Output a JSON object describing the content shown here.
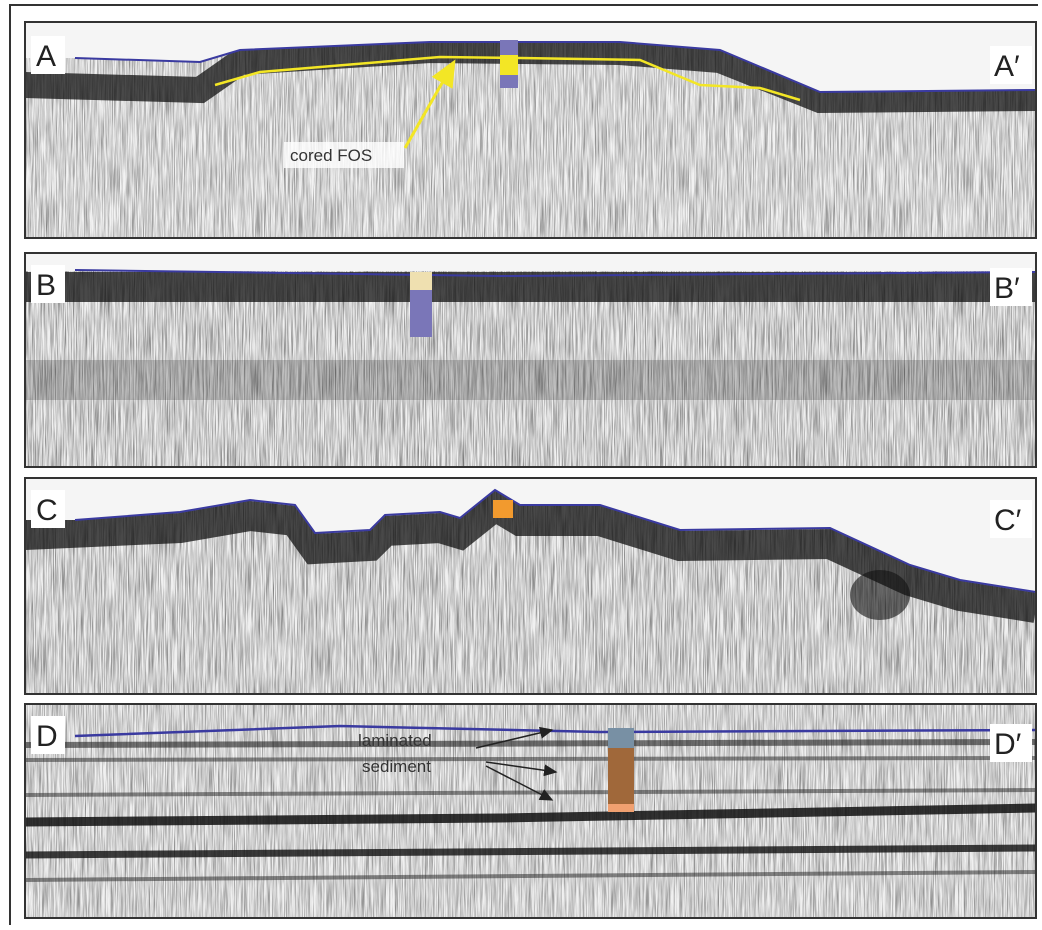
{
  "panels": [
    {
      "label": "A",
      "end_label": "A′",
      "annotation": "cored FOS"
    },
    {
      "label": "B",
      "end_label": "B′"
    },
    {
      "label": "C",
      "end_label": "C′"
    },
    {
      "label": "D",
      "end_label": "D′",
      "annotation_lines": [
        "laminated",
        "sediment"
      ]
    }
  ]
}
